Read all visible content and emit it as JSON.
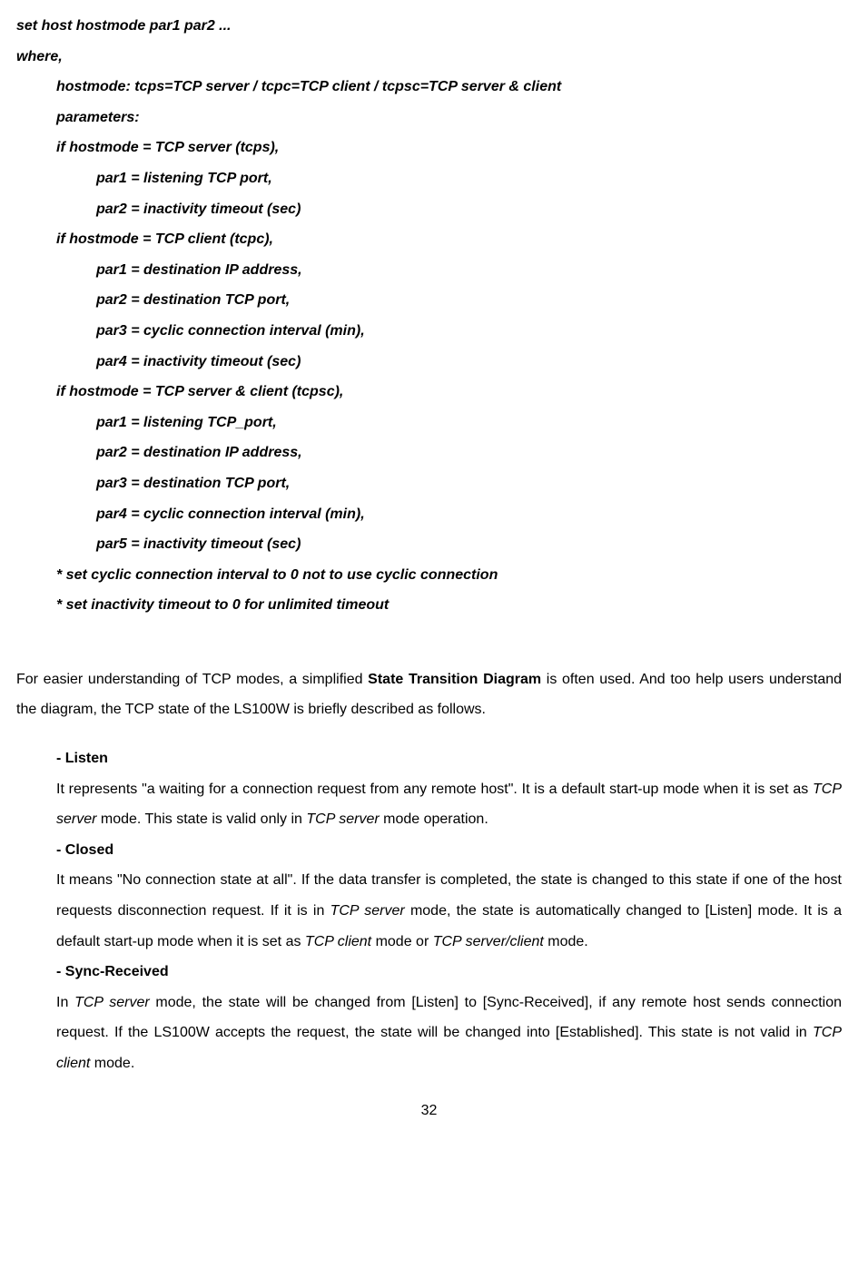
{
  "cmd": {
    "title": "set host hostmode par1 par2 ...",
    "where": "where,",
    "hostmode_line": "hostmode: tcps=TCP server / tcpc=TCP client / tcpsc=TCP server & client",
    "params_label": "parameters:",
    "tcps_header": "if hostmode = TCP server (tcps),",
    "tcps_par1": "par1 = listening TCP port,",
    "tcps_par2": "par2 = inactivity timeout (sec)",
    "tcpc_header": "if hostmode = TCP client (tcpc),",
    "tcpc_par1": "par1 = destination IP address,",
    "tcpc_par2": "par2 = destination TCP port,",
    "tcpc_par3": "par3 = cyclic connection interval (min),",
    "tcpc_par4": "par4 = inactivity timeout (sec)",
    "tcpsc_header": "if hostmode = TCP server & client (tcpsc),",
    "tcpsc_par1": "par1 = listening TCP_port,",
    "tcpsc_par2": "par2 = destination IP address,",
    "tcpsc_par3": "par3 = destination TCP port,",
    "tcpsc_par4": "par4 = cyclic connection interval (min),",
    "tcpsc_par5": "par5 = inactivity timeout (sec)",
    "note1": "* set cyclic connection interval to 0 not to use cyclic connection",
    "note2": "* set inactivity timeout to 0 for unlimited timeout"
  },
  "intro": {
    "pre": "For easier understanding of TCP modes, a simplified ",
    "bold": "State Transition Diagram",
    "post": " is often used. And too help users understand the diagram, the TCP state of the LS100W is briefly described as follows."
  },
  "states": {
    "listen_h": "- Listen",
    "listen_t1": "It represents \"a waiting for a connection request from any remote host\". It is a default start-up mode when it is set as ",
    "listen_i1": "TCP server",
    "listen_t2": " mode. This state is valid only in ",
    "listen_i2": "TCP server",
    "listen_t3": " mode operation.",
    "closed_h": "- Closed",
    "closed_t1": "It means \"No connection state at all\". If the data transfer is completed, the state is changed to this state if one of the host requests disconnection request. If it is in ",
    "closed_i1": "TCP server",
    "closed_t2": " mode, the state is automatically changed to [Listen] mode. It is a default start-up mode when it is set as ",
    "closed_i2": "TCP client",
    "closed_t3": " mode or ",
    "closed_i3": "TCP server/client",
    "closed_t4": " mode.",
    "sync_h": "- Sync-Received",
    "sync_t1": "In ",
    "sync_i1": "TCP server",
    "sync_t2": " mode, the state will be changed from [Listen] to [Sync-Received], if any remote host sends connection request. If the LS100W accepts the request, the state will be changed into [Established]. This state is not valid in ",
    "sync_i2": "TCP client",
    "sync_t3": " mode."
  },
  "page": "32"
}
